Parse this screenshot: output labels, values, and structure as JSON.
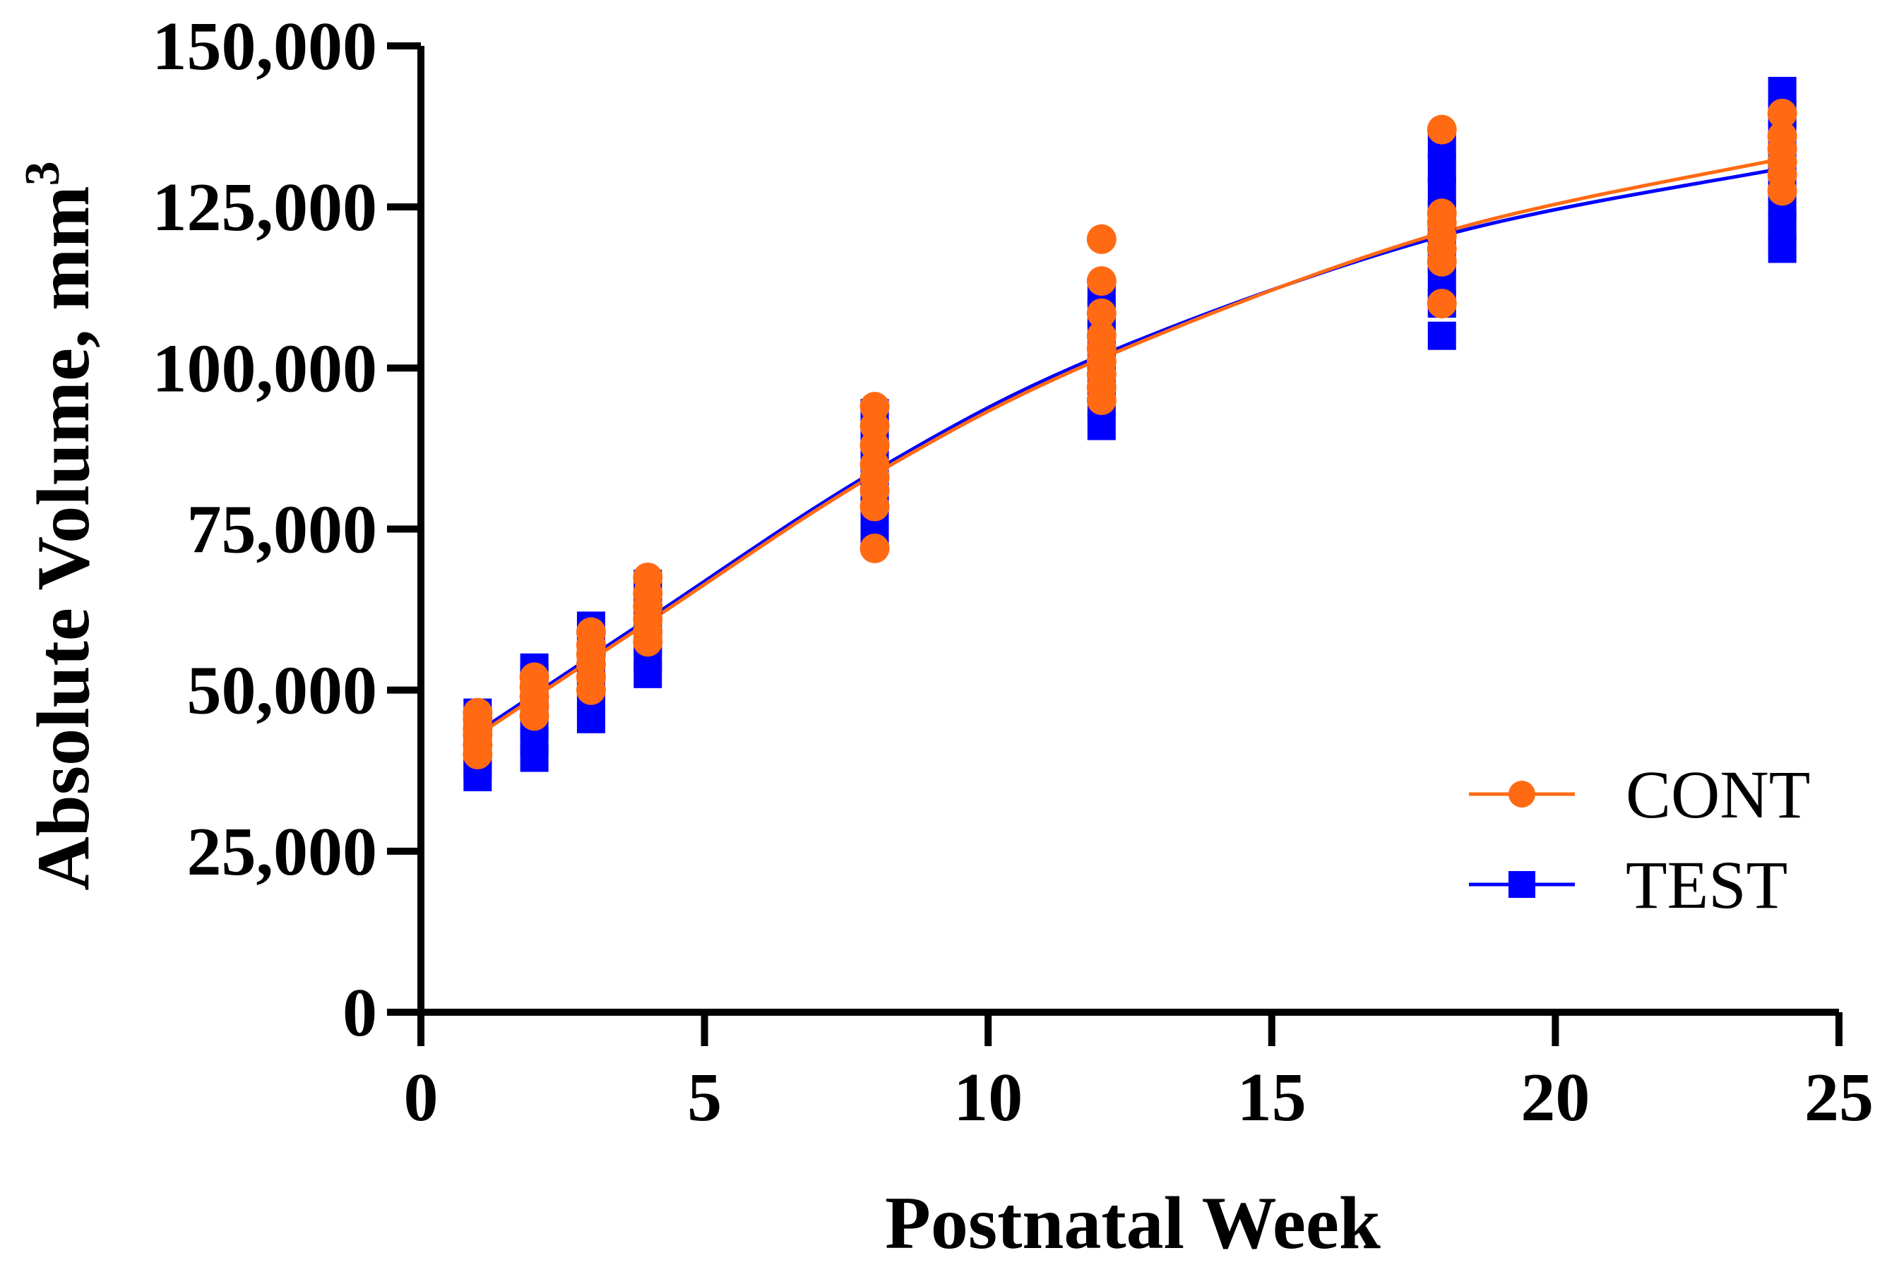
{
  "chart_data": {
    "type": "scatter",
    "title": "",
    "xlabel": "Postnatal Week",
    "ylabel": "Absolute Volume, mm",
    "ylabel_superscript": "3",
    "xlim": [
      0,
      25
    ],
    "ylim": [
      0,
      150000
    ],
    "xticks": [
      0,
      5,
      10,
      15,
      20,
      25
    ],
    "xtick_labels": [
      "0",
      "5",
      "10",
      "15",
      "20",
      "25"
    ],
    "yticks": [
      0,
      25000,
      50000,
      75000,
      100000,
      125000,
      150000
    ],
    "ytick_labels": [
      "0",
      "25,000",
      "50,000",
      "75,000",
      "100,000",
      "125,000",
      "150,000"
    ],
    "grid": false,
    "legend_position": "bottom-right",
    "series": [
      {
        "name": "CONT",
        "color": "#ff6a13",
        "marker": "circle",
        "points": [
          [
            1,
            40000
          ],
          [
            1,
            41500
          ],
          [
            1,
            43000
          ],
          [
            1,
            44000
          ],
          [
            1,
            45500
          ],
          [
            1,
            46500
          ],
          [
            2,
            46000
          ],
          [
            2,
            47500
          ],
          [
            2,
            49000
          ],
          [
            2,
            50500
          ],
          [
            2,
            52000
          ],
          [
            3,
            50000
          ],
          [
            3,
            52000
          ],
          [
            3,
            54000
          ],
          [
            3,
            55500
          ],
          [
            3,
            57000
          ],
          [
            3,
            59000
          ],
          [
            4,
            57500
          ],
          [
            4,
            59000
          ],
          [
            4,
            61000
          ],
          [
            4,
            63000
          ],
          [
            4,
            65000
          ],
          [
            4,
            67500
          ],
          [
            8,
            72000
          ],
          [
            8,
            78500
          ],
          [
            8,
            81000
          ],
          [
            8,
            83000
          ],
          [
            8,
            85000
          ],
          [
            8,
            88000
          ],
          [
            8,
            91000
          ],
          [
            8,
            94000
          ],
          [
            12,
            95000
          ],
          [
            12,
            97000
          ],
          [
            12,
            99000
          ],
          [
            12,
            101000
          ],
          [
            12,
            103000
          ],
          [
            12,
            105000
          ],
          [
            12,
            108500
          ],
          [
            12,
            113500
          ],
          [
            12,
            120000
          ],
          [
            18,
            110000
          ],
          [
            18,
            116500
          ],
          [
            18,
            118500
          ],
          [
            18,
            120500
          ],
          [
            18,
            122500
          ],
          [
            18,
            124000
          ],
          [
            18,
            137000
          ],
          [
            24,
            127500
          ],
          [
            24,
            130000
          ],
          [
            24,
            132000
          ],
          [
            24,
            134000
          ],
          [
            24,
            136000
          ],
          [
            24,
            139500
          ]
        ],
        "fit": [
          [
            1,
            43000
          ],
          [
            4,
            60500
          ],
          [
            8,
            83500
          ],
          [
            12,
            101500
          ],
          [
            18,
            121000
          ],
          [
            24,
            132500
          ]
        ]
      },
      {
        "name": "TEST",
        "color": "#0000ff",
        "marker": "square",
        "points": [
          [
            1,
            36500
          ],
          [
            1,
            38500
          ],
          [
            1,
            40500
          ],
          [
            1,
            42500
          ],
          [
            1,
            44500
          ],
          [
            1,
            46500
          ],
          [
            2,
            39500
          ],
          [
            2,
            42000
          ],
          [
            2,
            44500
          ],
          [
            2,
            47000
          ],
          [
            2,
            49500
          ],
          [
            2,
            52000
          ],
          [
            2,
            53500
          ],
          [
            3,
            45500
          ],
          [
            3,
            48000
          ],
          [
            3,
            50500
          ],
          [
            3,
            53000
          ],
          [
            3,
            55500
          ],
          [
            3,
            58000
          ],
          [
            3,
            60000
          ],
          [
            4,
            52500
          ],
          [
            4,
            55000
          ],
          [
            4,
            57500
          ],
          [
            4,
            60000
          ],
          [
            4,
            62500
          ],
          [
            4,
            65000
          ],
          [
            4,
            66500
          ],
          [
            8,
            73500
          ],
          [
            8,
            77000
          ],
          [
            8,
            80500
          ],
          [
            8,
            84000
          ],
          [
            8,
            87500
          ],
          [
            8,
            91000
          ],
          [
            8,
            93000
          ],
          [
            12,
            91000
          ],
          [
            12,
            94500
          ],
          [
            12,
            98000
          ],
          [
            12,
            101500
          ],
          [
            12,
            105000
          ],
          [
            12,
            108500
          ],
          [
            12,
            112000
          ],
          [
            18,
            105000
          ],
          [
            18,
            110000
          ],
          [
            18,
            113500
          ],
          [
            18,
            117000
          ],
          [
            18,
            120500
          ],
          [
            18,
            124000
          ],
          [
            18,
            127500
          ],
          [
            18,
            131000
          ],
          [
            18,
            135000
          ],
          [
            24,
            118500
          ],
          [
            24,
            122000
          ],
          [
            24,
            125500
          ],
          [
            24,
            129000
          ],
          [
            24,
            132500
          ],
          [
            24,
            136000
          ],
          [
            24,
            139500
          ],
          [
            24,
            143000
          ]
        ],
        "fit": [
          [
            1,
            43500
          ],
          [
            4,
            61000
          ],
          [
            8,
            84000
          ],
          [
            12,
            102000
          ],
          [
            18,
            120500
          ],
          [
            24,
            131000
          ]
        ]
      }
    ]
  }
}
